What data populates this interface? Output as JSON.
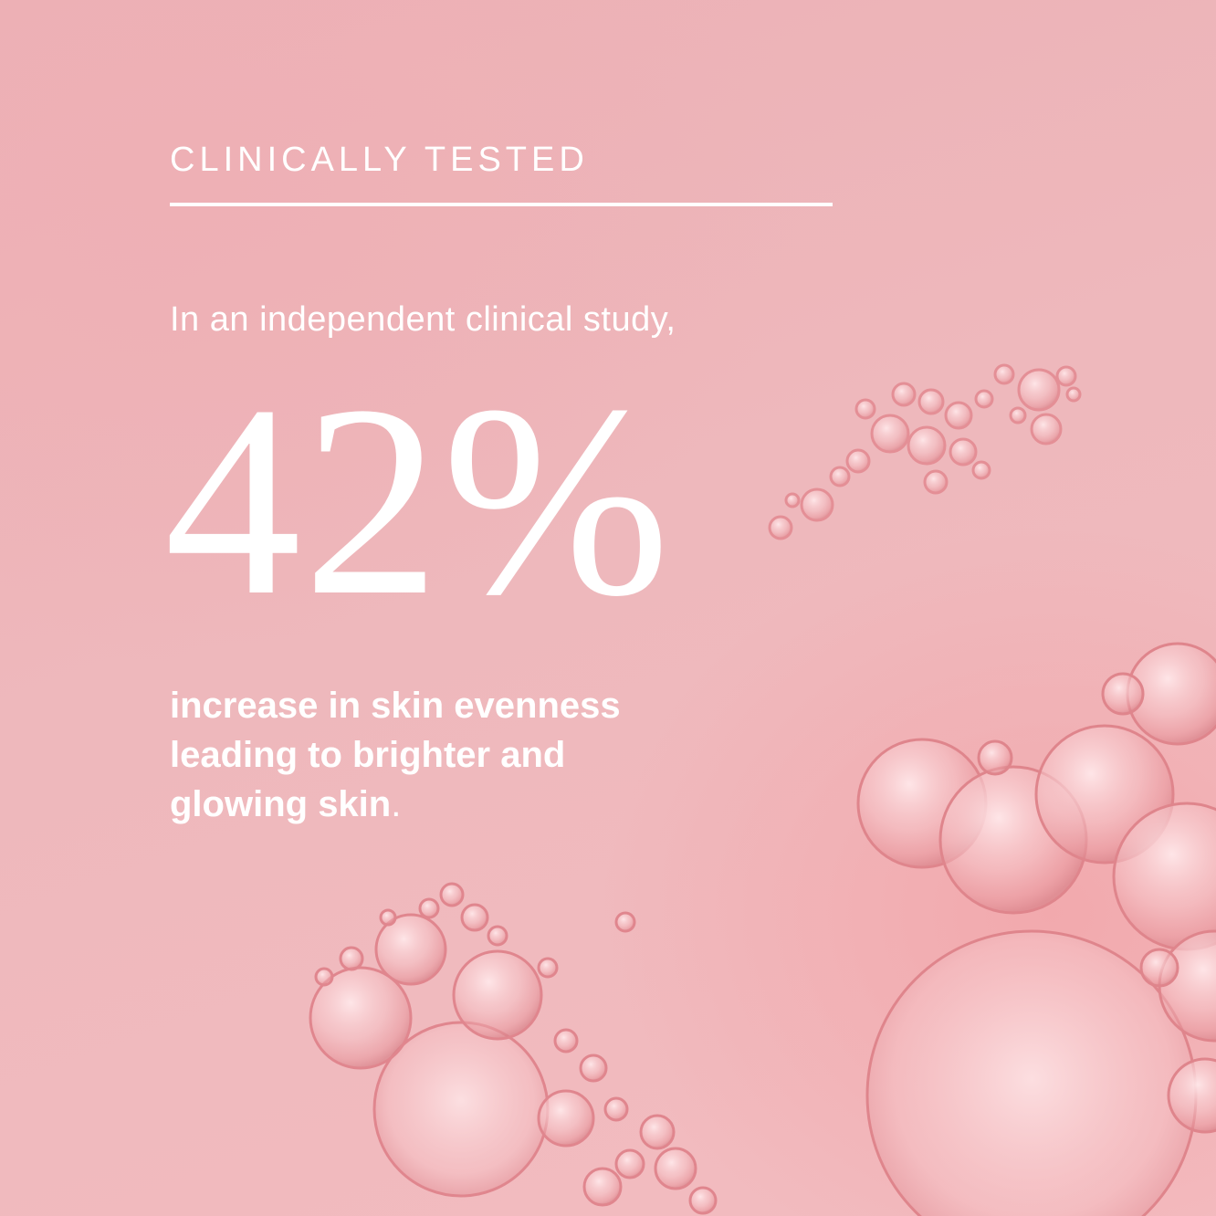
{
  "eyebrow": "CLINICALLY TESTED",
  "intro": "In an independent clinical study,",
  "stat": "42%",
  "description": {
    "line1": "increase in skin evenness",
    "line2": "leading to brighter and",
    "line3": "glowing skin",
    "period": "."
  },
  "colors": {
    "background": "#eeb4b8",
    "text": "#ffffff"
  }
}
